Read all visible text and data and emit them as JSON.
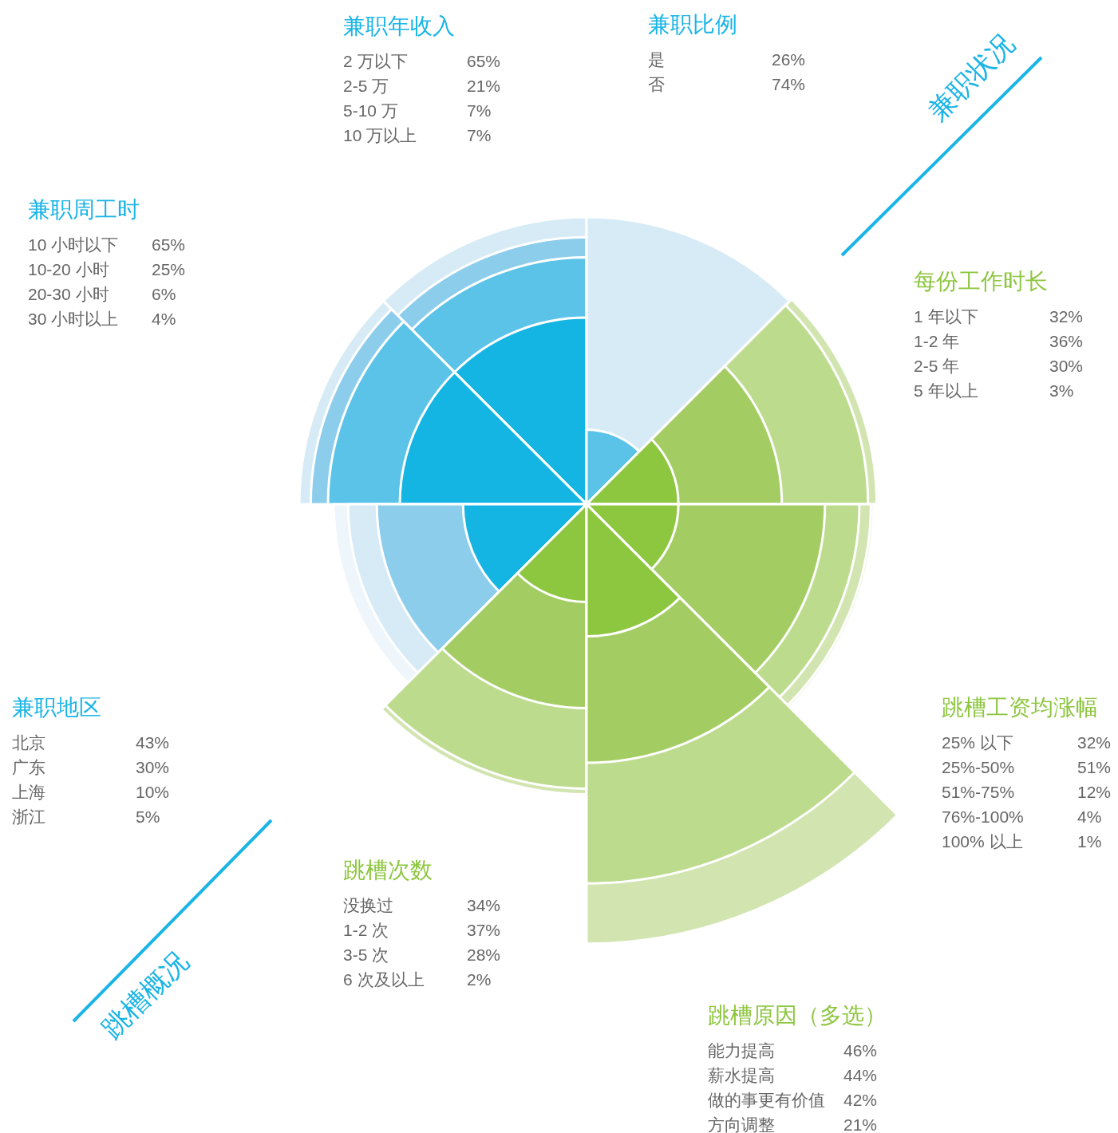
{
  "chart_data": [
    {
      "type": "other",
      "title": "兼职年收入",
      "categories": [
        "2 万以下",
        "2-5 万",
        "5-10 万",
        "10 万以上"
      ],
      "values": [
        65,
        21,
        7,
        7
      ],
      "value_labels": [
        "65%",
        "21%",
        "7%",
        "7%"
      ],
      "colors": [
        "#15b5e3",
        "#5bc3e8",
        "#8ccdec",
        "#d6ebf6"
      ]
    },
    {
      "type": "other",
      "title": "兼职比例",
      "categories": [
        "是",
        "否"
      ],
      "values": [
        26,
        74
      ],
      "value_labels": [
        "26%",
        "74%"
      ],
      "colors": [
        "#5bc3e8",
        "#d6ebf6"
      ],
      "annotations": [
        "兼职状况"
      ]
    },
    {
      "type": "other",
      "title": "兼职周工时",
      "categories": [
        "10 小时以下",
        "10-20 小时",
        "20-30 小时",
        "30 小时以上"
      ],
      "values": [
        65,
        25,
        6,
        4
      ],
      "value_labels": [
        "65%",
        "25%",
        "6%",
        "4%"
      ],
      "colors": [
        "#15b5e3",
        "#5bc3e8",
        "#8ccdec",
        "#d6ebf6"
      ]
    },
    {
      "type": "other",
      "title": "每份工作时长",
      "categories": [
        "1 年以下",
        "1-2 年",
        "2-5 年",
        "5 年以上"
      ],
      "values": [
        32,
        36,
        30,
        3
      ],
      "value_labels": [
        "32%",
        "36%",
        "30%",
        "3%"
      ],
      "colors": [
        "#8dc63f",
        "#a3cd62",
        "#bcdb8d",
        "#d2e5b0"
      ]
    },
    {
      "type": "other",
      "title": "兼职地区",
      "categories": [
        "北京",
        "广东",
        "上海",
        "浙江"
      ],
      "values": [
        43,
        30,
        10,
        5
      ],
      "value_labels": [
        "43%",
        "30%",
        "10%",
        "5%"
      ],
      "colors": [
        "#15b5e3",
        "#8ccdec",
        "#d6ebf6",
        "#eef6fc"
      ],
      "annotations": [
        "跳槽概况"
      ]
    },
    {
      "type": "other",
      "title": "跳槽工资均涨幅",
      "categories": [
        "25% 以下",
        "25%-50%",
        "51%-75%",
        "76%-100%",
        "100% 以上"
      ],
      "values": [
        32,
        51,
        12,
        4,
        1
      ],
      "value_labels": [
        "32%",
        "51%",
        "12%",
        "4%",
        "1%"
      ],
      "colors": [
        "#8dc63f",
        "#a3cd62",
        "#bcdb8d",
        "#d2e5b0",
        "#e5f0d3"
      ]
    },
    {
      "type": "other",
      "title": "跳槽次数",
      "categories": [
        "没换过",
        "1-2 次",
        "3-5 次",
        "6 次及以上"
      ],
      "values": [
        34,
        37,
        28,
        2
      ],
      "value_labels": [
        "34%",
        "37%",
        "28%",
        "2%"
      ],
      "colors": [
        "#8dc63f",
        "#a3cd62",
        "#bcdb8d",
        "#d2e5b0"
      ]
    },
    {
      "type": "other",
      "title": "跳槽原因（多选）",
      "categories": [
        "能力提高",
        "薪水提高",
        "做的事更有价值",
        "方向调整"
      ],
      "values": [
        46,
        44,
        42,
        21
      ],
      "value_labels": [
        "46%",
        "44%",
        "42%",
        "21%"
      ],
      "colors": [
        "#8dc63f",
        "#a3cd62",
        "#bcdb8d",
        "#d2e5b0"
      ]
    }
  ]
}
